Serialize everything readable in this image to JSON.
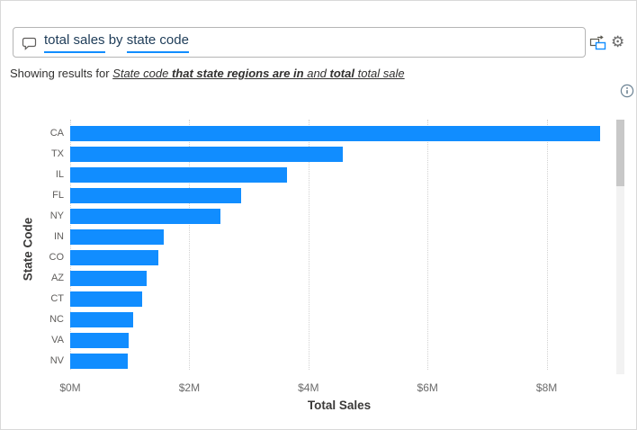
{
  "search_box": {
    "icon": "chat-bubble-icon",
    "segments": [
      {
        "text": "total sales",
        "underlined": true
      },
      {
        "text": " by ",
        "underlined": false
      },
      {
        "text": "state code",
        "underlined": true
      }
    ]
  },
  "toolbar": {
    "convert_icon": "convert-to-standard-visual-icon",
    "settings_icon": "gear-icon",
    "info_icon": "info-icon"
  },
  "restatement": {
    "prefix": "Showing results for ",
    "segments": [
      {
        "text": "State code ",
        "bold": false
      },
      {
        "text": "that state regions are in",
        "bold": true
      },
      {
        "text": " and ",
        "bold": false
      },
      {
        "text": "total",
        "bold": true
      },
      {
        "text": " total sale",
        "bold": false
      }
    ]
  },
  "chart_data": {
    "type": "bar",
    "orientation": "horizontal",
    "title": "",
    "categories": [
      "CA",
      "TX",
      "IL",
      "FL",
      "NY",
      "IN",
      "CO",
      "AZ",
      "CT",
      "NC",
      "VA",
      "NV"
    ],
    "values_millions": [
      8.9,
      4.58,
      3.64,
      2.87,
      2.52,
      1.57,
      1.48,
      1.28,
      1.21,
      1.05,
      0.98,
      0.96
    ],
    "xlabel": "Total Sales",
    "ylabel": "State Code",
    "x_ticks": [
      "$0M",
      "$2M",
      "$4M",
      "$6M",
      "$8M"
    ],
    "x_tick_values": [
      0,
      2,
      4,
      6,
      8
    ],
    "xlim": [
      0,
      8.95
    ],
    "grid": "vertical-dotted",
    "legend": "none",
    "bar_color": "#118DFF"
  },
  "scrollbar": {
    "visible": true,
    "thumb_position": "top"
  },
  "colors": {
    "accent": "#118DFF",
    "bar": "#118DFF",
    "term_underline": "#118DFF",
    "query_text": "#1e3c58",
    "restatement_text": "#323130",
    "category_label": "#605e5c",
    "tick_label": "#6b6b6b",
    "axis_title": "#3b3a39",
    "gridline": "#d2d2d2",
    "container_border": "#d9d9d9",
    "input_border": "#b5b5b5",
    "scroll_track": "#f2f2f2",
    "scroll_thumb": "#c8c8c8",
    "icon_gray": "#605e5c"
  }
}
